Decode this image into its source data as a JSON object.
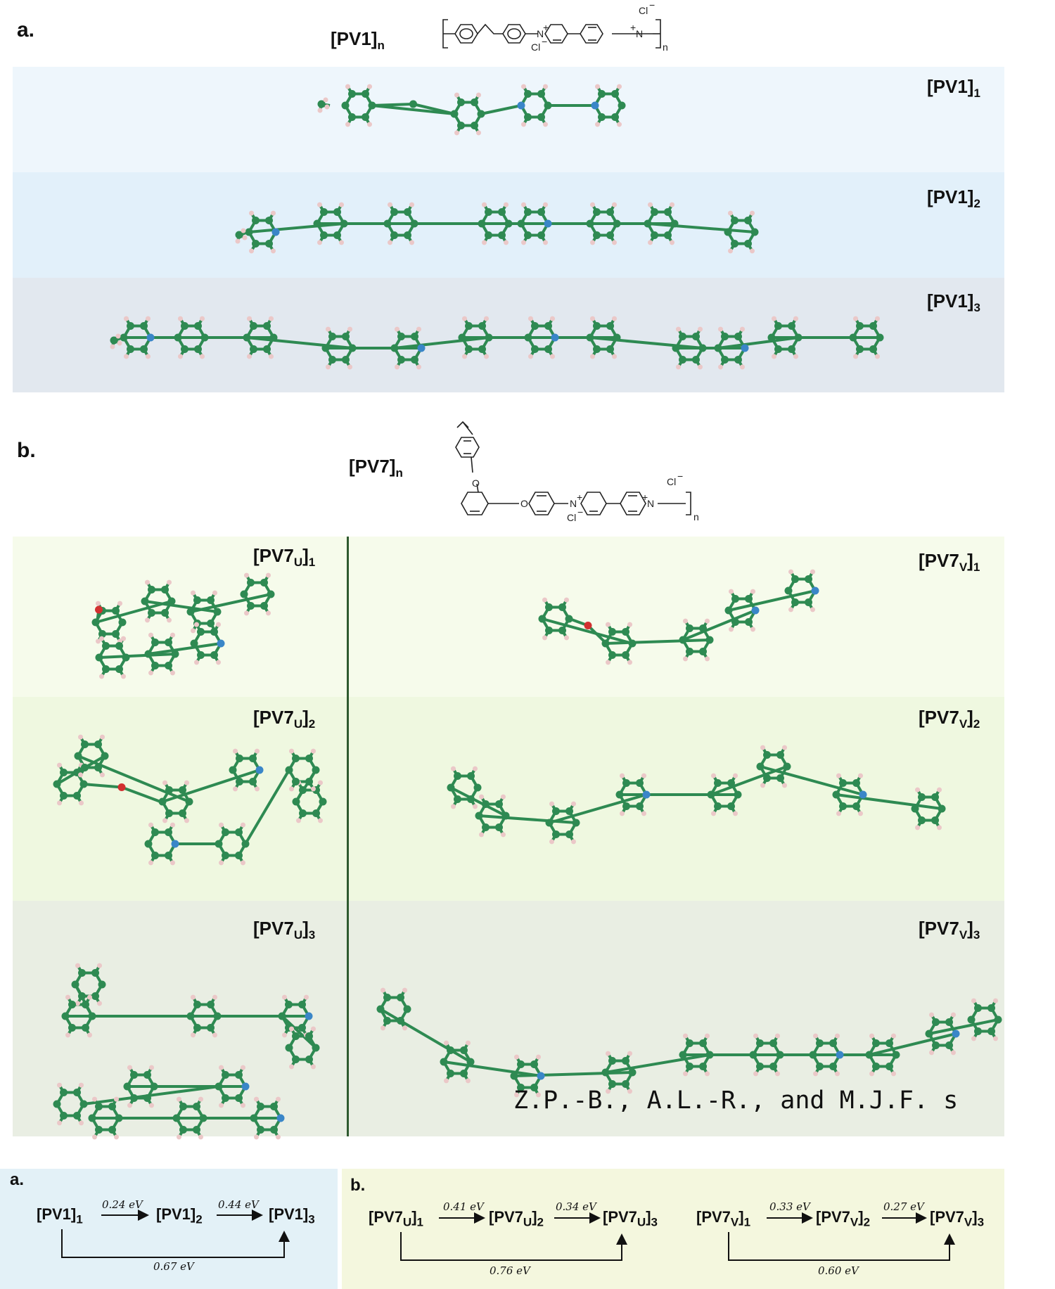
{
  "panel_a": {
    "letter": "a.",
    "polymer_label": "[PV1]",
    "polymer_sub": "n",
    "rows": [
      {
        "label": "[PV1]",
        "sub": "1"
      },
      {
        "label": "[PV1]",
        "sub": "2"
      },
      {
        "label": "[PV1]",
        "sub": "3"
      }
    ]
  },
  "panel_b": {
    "letter": "b.",
    "polymer_label": "[PV7]",
    "polymer_sub": "n",
    "left": [
      {
        "label": "[PV7",
        "mid": "U",
        "sub": "1"
      },
      {
        "label": "[PV7",
        "mid": "U",
        "sub": "2"
      },
      {
        "label": "[PV7",
        "mid": "U",
        "sub": "3"
      }
    ],
    "right": [
      {
        "label": "[PV7",
        "mid": "V",
        "sub": "1"
      },
      {
        "label": "[PV7",
        "mid": "V",
        "sub": "2"
      },
      {
        "label": "[PV7",
        "mid": "V",
        "sub": "3"
      }
    ]
  },
  "structure_text": {
    "cl_minus": "Cl",
    "n_plus": "N",
    "o_atom": "O",
    "n_sub": "n"
  },
  "watermark": "Z.P.-B., A.L.-R., and M.J.F. s",
  "bottom_a": {
    "letter": "a.",
    "n1": "[PV1]",
    "s1": "1",
    "n2": "[PV1]",
    "s2": "2",
    "n3": "[PV1]",
    "s3": "3",
    "e12": "0.24 eV",
    "e23": "0.44 eV",
    "e13": "0.67 eV"
  },
  "bottom_b": {
    "letter": "b.",
    "u": {
      "n1": "[PV7",
      "m": "U",
      "s1": "1",
      "s2": "2",
      "s3": "3",
      "e12": "0.41 eV",
      "e23": "0.34 eV",
      "e13": "0.76 eV"
    },
    "v": {
      "n1": "[PV7",
      "m": "V",
      "s1": "1",
      "s2": "2",
      "s3": "3",
      "e12": "0.33 eV",
      "e23": "0.27 eV",
      "e13": "0.60 eV"
    }
  },
  "colors": {
    "band_a1": "#eef6fc",
    "band_a2": "#e2f0fa",
    "band_a3": "#e2e8ef",
    "band_b1": "#f6fbeb",
    "band_b2": "#eff8e0",
    "band_b3": "#e9eee3",
    "divider": "#2f5a2f",
    "bottom_a_bg": "#e3f1f7",
    "bottom_b_bg": "#f4f7de",
    "carbon": "#2e8a52",
    "nitrogen": "#3a86c8",
    "oxygen": "#d23030",
    "hydrogen": "#ebc8c8"
  }
}
